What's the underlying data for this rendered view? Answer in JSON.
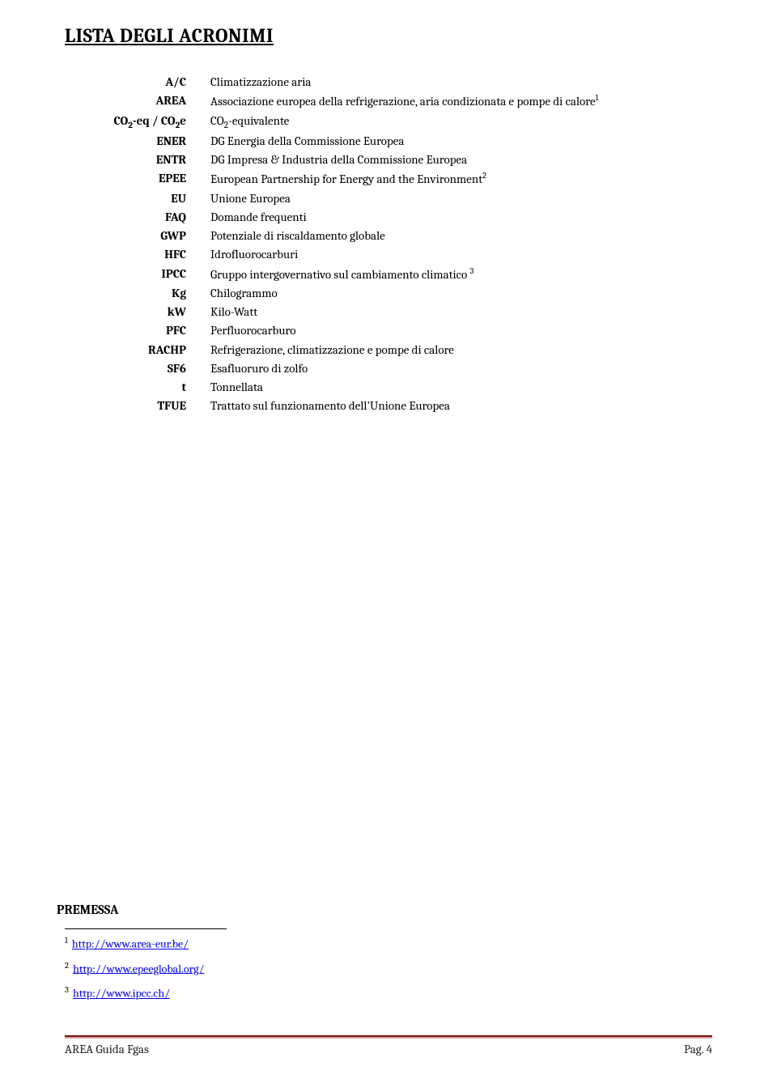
{
  "title": "LISTA DEGLI ACRONIMI",
  "acronyms": [
    {
      "term": "A/C",
      "def": "Climatizzazione aria"
    },
    {
      "term": "AREA",
      "def": "Associazione europea della refrigerazione, aria condizionata e pompe di calore",
      "sup": "1"
    },
    {
      "term": "CO₂-eq / CO₂e",
      "def": "CO₂-equivalente"
    },
    {
      "term": "ENER",
      "def": "DG Energia della Commissione Europea"
    },
    {
      "term": "ENTR",
      "def": "DG Impresa & Industria della Commissione Europea"
    },
    {
      "term": "EPEE",
      "def": "European Partnership for Energy and the Environment",
      "sup": "2"
    },
    {
      "term": "EU",
      "def": "Unione Europea"
    },
    {
      "term": "FAQ",
      "def": "Domande frequenti"
    },
    {
      "term": "GWP",
      "def": "Potenziale di riscaldamento globale"
    },
    {
      "term": "HFC",
      "def": "Idrofluorocarburi"
    },
    {
      "term": "IPCC",
      "def": "Gruppo intergovernativo sul cambiamento climatico",
      "suptrail": "3"
    },
    {
      "term": "Kg",
      "def": " Chilogrammo"
    },
    {
      "term": "kW",
      "def": "Kilo-Watt"
    },
    {
      "term": "PFC",
      "def": "Perfluorocarburo"
    },
    {
      "term": "RACHP",
      "def": "Refrigerazione, climatizzazione e pompe di calore"
    },
    {
      "term": "SF6",
      "def": "Esafluoruro di zolfo"
    },
    {
      "term": "t",
      "def": "Tonnellata"
    },
    {
      "term": "TFUE",
      "def": "Trattato sul funzionamento dell'Unione Europea"
    }
  ],
  "premessa": "PREMESSA",
  "footnotes": [
    {
      "num": "1",
      "url": "http://www.area-eur.be/"
    },
    {
      "num": "2",
      "url": "http://www.epeeglobal.org/"
    },
    {
      "num": "3",
      "url": "http://www.ipcc.ch/"
    }
  ],
  "footer": {
    "left": "AREA Guida Fgas",
    "right": "Pag. 4"
  }
}
